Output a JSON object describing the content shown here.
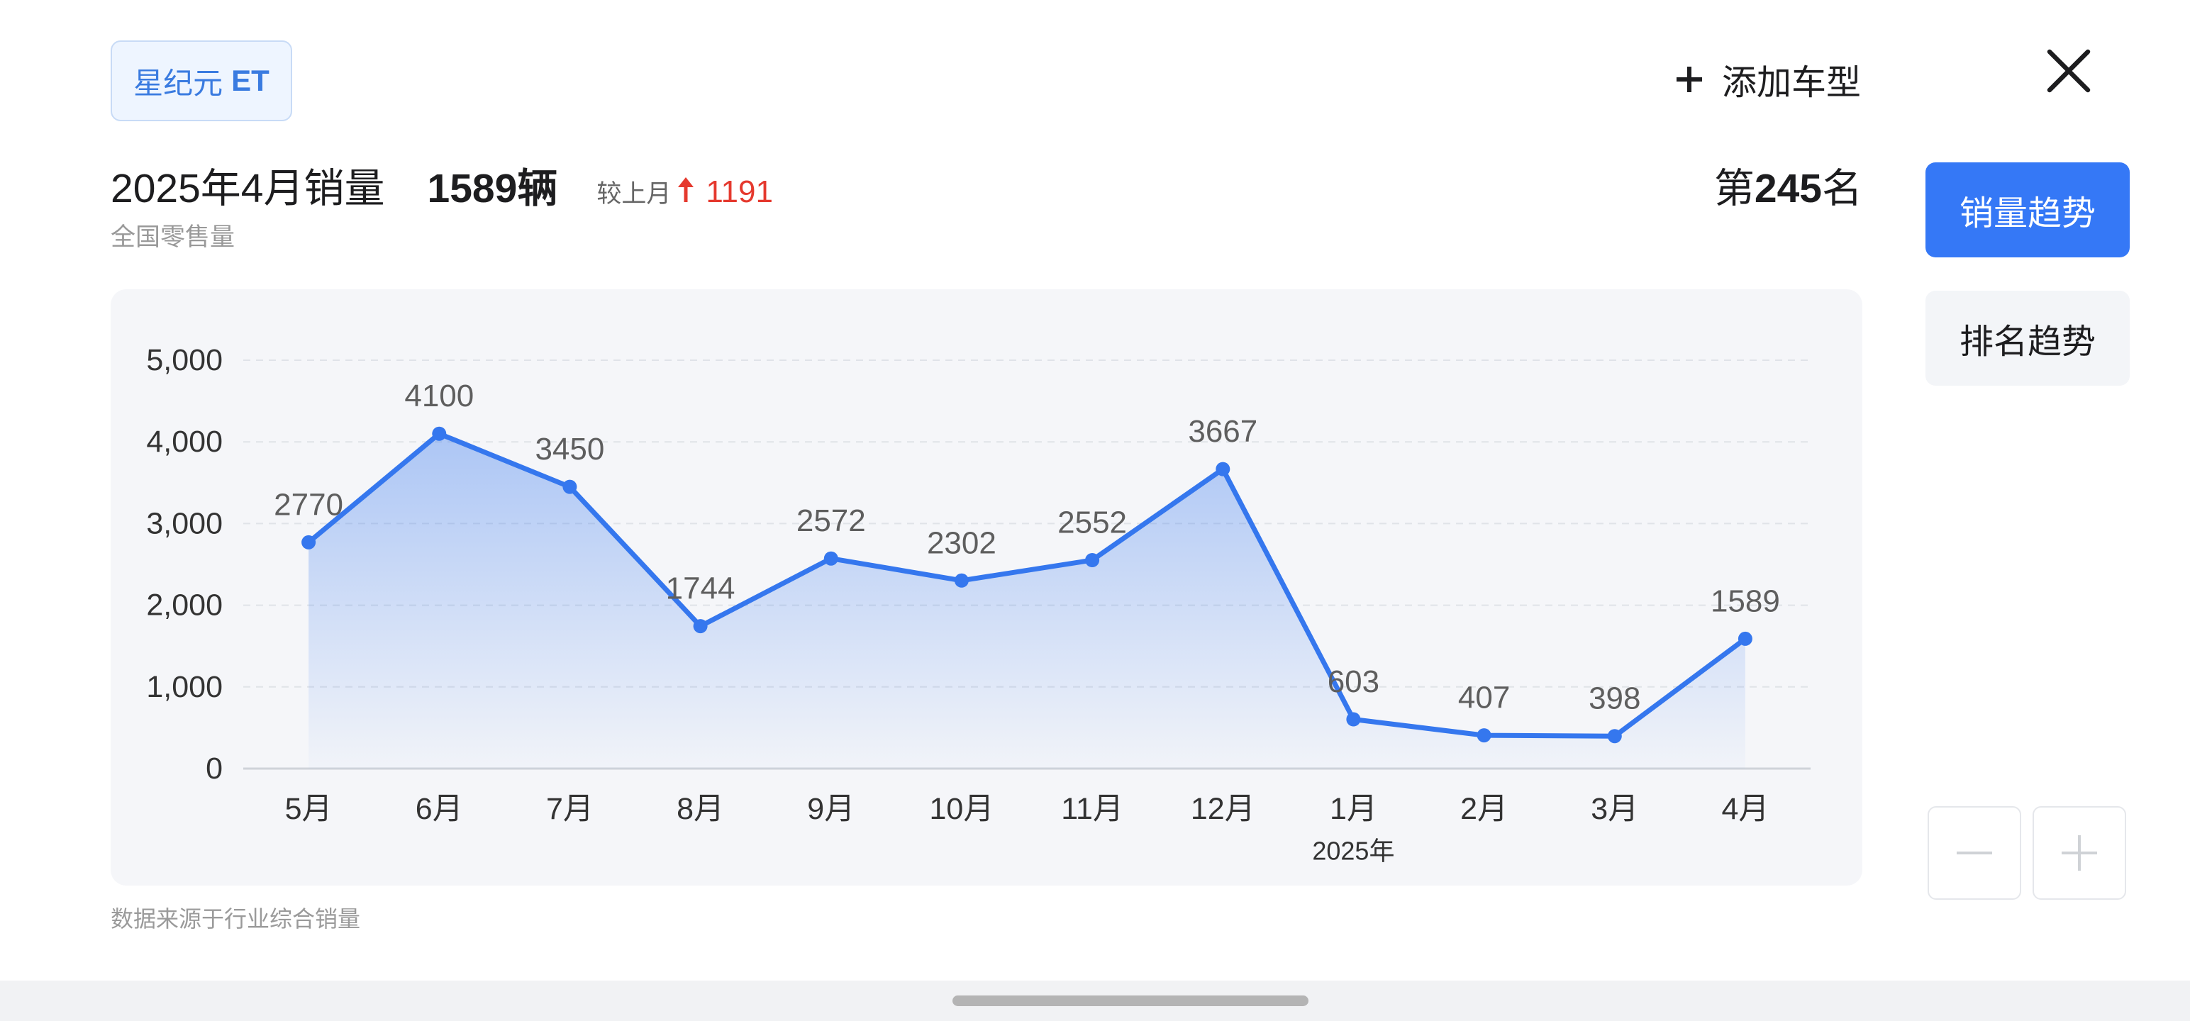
{
  "header": {
    "model_chip": {
      "brand": "星纪元",
      "model": "ET"
    },
    "add_model": {
      "icon": "plus-icon",
      "label": "添加车型"
    },
    "close_icon": "close-icon"
  },
  "summary": {
    "period_label": "2025年4月销量",
    "sales_value": "1589",
    "sales_unit": "辆",
    "compare_label": "较上月",
    "change_icon": "arrow-up-icon",
    "change_value": "1191",
    "scope_label": "全国零售量",
    "rank": {
      "prefix": "第",
      "value": "245",
      "suffix": "名"
    }
  },
  "side_tabs": [
    {
      "label": "销量趋势",
      "active": true
    },
    {
      "label": "排名趋势",
      "active": false
    }
  ],
  "chart_data": {
    "type": "line",
    "area_fill": true,
    "markers": true,
    "data_labels": true,
    "grid": true,
    "categories": [
      "5月",
      "6月",
      "7月",
      "8月",
      "9月",
      "10月",
      "11月",
      "12月",
      "1月",
      "2月",
      "3月",
      "4月"
    ],
    "x_sublabels": [
      {
        "index": 8,
        "label": "2025年"
      }
    ],
    "series": [
      {
        "values": [
          2770,
          4100,
          3450,
          1744,
          2572,
          2302,
          2552,
          3667,
          603,
          407,
          398,
          1589
        ],
        "color": "#3577ee"
      }
    ],
    "y_ticks": [
      0,
      1000,
      2000,
      3000,
      4000,
      5000
    ],
    "y_tick_labels": [
      "0",
      "1,000",
      "2,000",
      "3,000",
      "4,000",
      "5,000"
    ],
    "ylim": [
      0,
      5000
    ]
  },
  "footer": {
    "source_note": "数据来源于行业综合销量"
  },
  "zoom_controls": {
    "zoom_out_icon": "minus-icon",
    "zoom_in_icon": "plus-icon"
  },
  "colors": {
    "accent": "#3578f6",
    "increase": "#e5392e",
    "chip_text": "#3a7be0",
    "chart_background": "#f5f6f9"
  }
}
